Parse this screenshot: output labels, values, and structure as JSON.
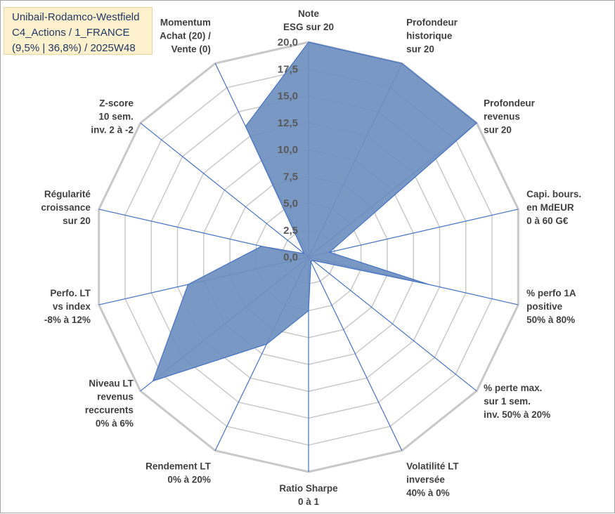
{
  "title_lines": [
    "Unibail-Rodamco-Westfield",
    "C4_Actions / 1_FRANCE",
    "(9,5% | 36,8%) / 2025W48"
  ],
  "colors": {
    "fill": "#6f8fbf",
    "line": "#4472c4",
    "grid": "#c8c8c8",
    "title_bg": "#fdf0cc",
    "title_text": "#1f3864"
  },
  "chart_data": {
    "type": "radar",
    "title": "",
    "rmin": 0,
    "rmax": 20,
    "grid_rings": 8,
    "ticks": [
      "0,0",
      "2,5",
      "5,0",
      "7,5",
      "10,0",
      "12,5",
      "15,0",
      "17,5",
      "20,0"
    ],
    "axes": [
      {
        "label": [
          "Note",
          "ESG sur 20"
        ],
        "value": 20.0
      },
      {
        "label": [
          "Profondeur",
          "historique",
          "sur 20"
        ],
        "value": 20.0
      },
      {
        "label": [
          "Profondeur",
          "revenus",
          "sur 20"
        ],
        "value": 20.0
      },
      {
        "label": [
          "Capi. bours.",
          "en MdEUR",
          "0 à 60 G€"
        ],
        "value": 2.0
      },
      {
        "label": [
          "% perfo 1A",
          "positive",
          "50% à 80%"
        ],
        "value": 11.5
      },
      {
        "label": [
          "% perte max.",
          "sur 1 sem.",
          "inv. 50% à 20%"
        ],
        "value": 0.5
      },
      {
        "label": [
          "Volatilité LT",
          "inversée",
          "40% à 0%"
        ],
        "value": 0.5
      },
      {
        "label": [
          "Ratio Sharpe",
          "0 à 1"
        ],
        "value": 5.0
      },
      {
        "label": [
          "Rendement LT",
          "0% à 20%"
        ],
        "value": 9.0
      },
      {
        "label": [
          "Niveau LT",
          "revenus",
          "reccurents",
          "0% à 6%"
        ],
        "value": 18.5
      },
      {
        "label": [
          "Perfo. LT",
          "vs index",
          "-8% à 12%"
        ],
        "value": 11.5
      },
      {
        "label": [
          "Régularité",
          "croissance",
          "sur 20"
        ],
        "value": 4.5
      },
      {
        "label": [
          "Z-score",
          "10 sem.",
          "inv. 2 à -2"
        ],
        "value": 0.5
      },
      {
        "label": [
          "Momentum",
          "Achat (20) /",
          "Vente (0)"
        ],
        "value": 13.5
      }
    ]
  }
}
